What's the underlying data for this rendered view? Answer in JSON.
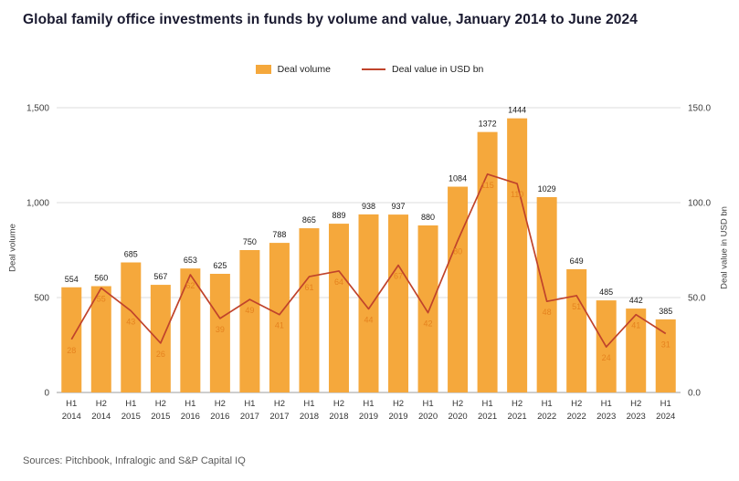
{
  "title": "Global family office investments in funds by volume and value, January 2014 to June 2024",
  "legend": {
    "volume_label": "Deal volume",
    "value_label": "Deal value in USD bn"
  },
  "source": "Sources: Pitchbook, Infralogic and S&P Capital IQ",
  "chart_data": {
    "type": "bar+line combo",
    "categories": [
      [
        "H1",
        "2014"
      ],
      [
        "H2",
        "2014"
      ],
      [
        "H1",
        "2015"
      ],
      [
        "H2",
        "2015"
      ],
      [
        "H1",
        "2016"
      ],
      [
        "H2",
        "2016"
      ],
      [
        "H1",
        "2017"
      ],
      [
        "H2",
        "2017"
      ],
      [
        "H1",
        "2018"
      ],
      [
        "H2",
        "2018"
      ],
      [
        "H1",
        "2019"
      ],
      [
        "H2",
        "2019"
      ],
      [
        "H1",
        "2020"
      ],
      [
        "H2",
        "2020"
      ],
      [
        "H1",
        "2021"
      ],
      [
        "H2",
        "2021"
      ],
      [
        "H1",
        "2022"
      ],
      [
        "H2",
        "2022"
      ],
      [
        "H1",
        "2023"
      ],
      [
        "H2",
        "2023"
      ],
      [
        "H1",
        "2024"
      ]
    ],
    "series": [
      {
        "name": "Deal volume",
        "type": "bar",
        "axis": "left",
        "values": [
          554,
          560,
          685,
          567,
          653,
          625,
          750,
          788,
          865,
          889,
          938,
          937,
          880,
          1084,
          1372,
          1444,
          1029,
          649,
          485,
          442,
          385
        ]
      },
      {
        "name": "Deal value in USD bn",
        "type": "line",
        "axis": "right",
        "values": [
          28,
          55,
          43,
          26,
          62,
          39,
          49,
          41,
          61,
          64,
          44,
          67,
          42,
          80,
          115,
          110,
          48,
          51,
          24,
          41,
          31
        ]
      }
    ],
    "left_axis": {
      "label": "Deal volume",
      "min": 0,
      "max": 1500,
      "tick_values": [
        0,
        500,
        1000,
        1500
      ],
      "ticks": [
        "0",
        "500",
        "1,000",
        "1,500"
      ]
    },
    "right_axis": {
      "label": "Deal value in USD bn",
      "min": 0,
      "max": 150,
      "tick_values": [
        0,
        50,
        100,
        150
      ],
      "ticks": [
        "0.0",
        "50.0",
        "100.0",
        "150.0"
      ]
    },
    "grid": "horizontal",
    "legend_position": "top-center",
    "colors": {
      "bar": "#F5A83C",
      "line": "#C0432B",
      "line_label": "#E5821E"
    }
  }
}
